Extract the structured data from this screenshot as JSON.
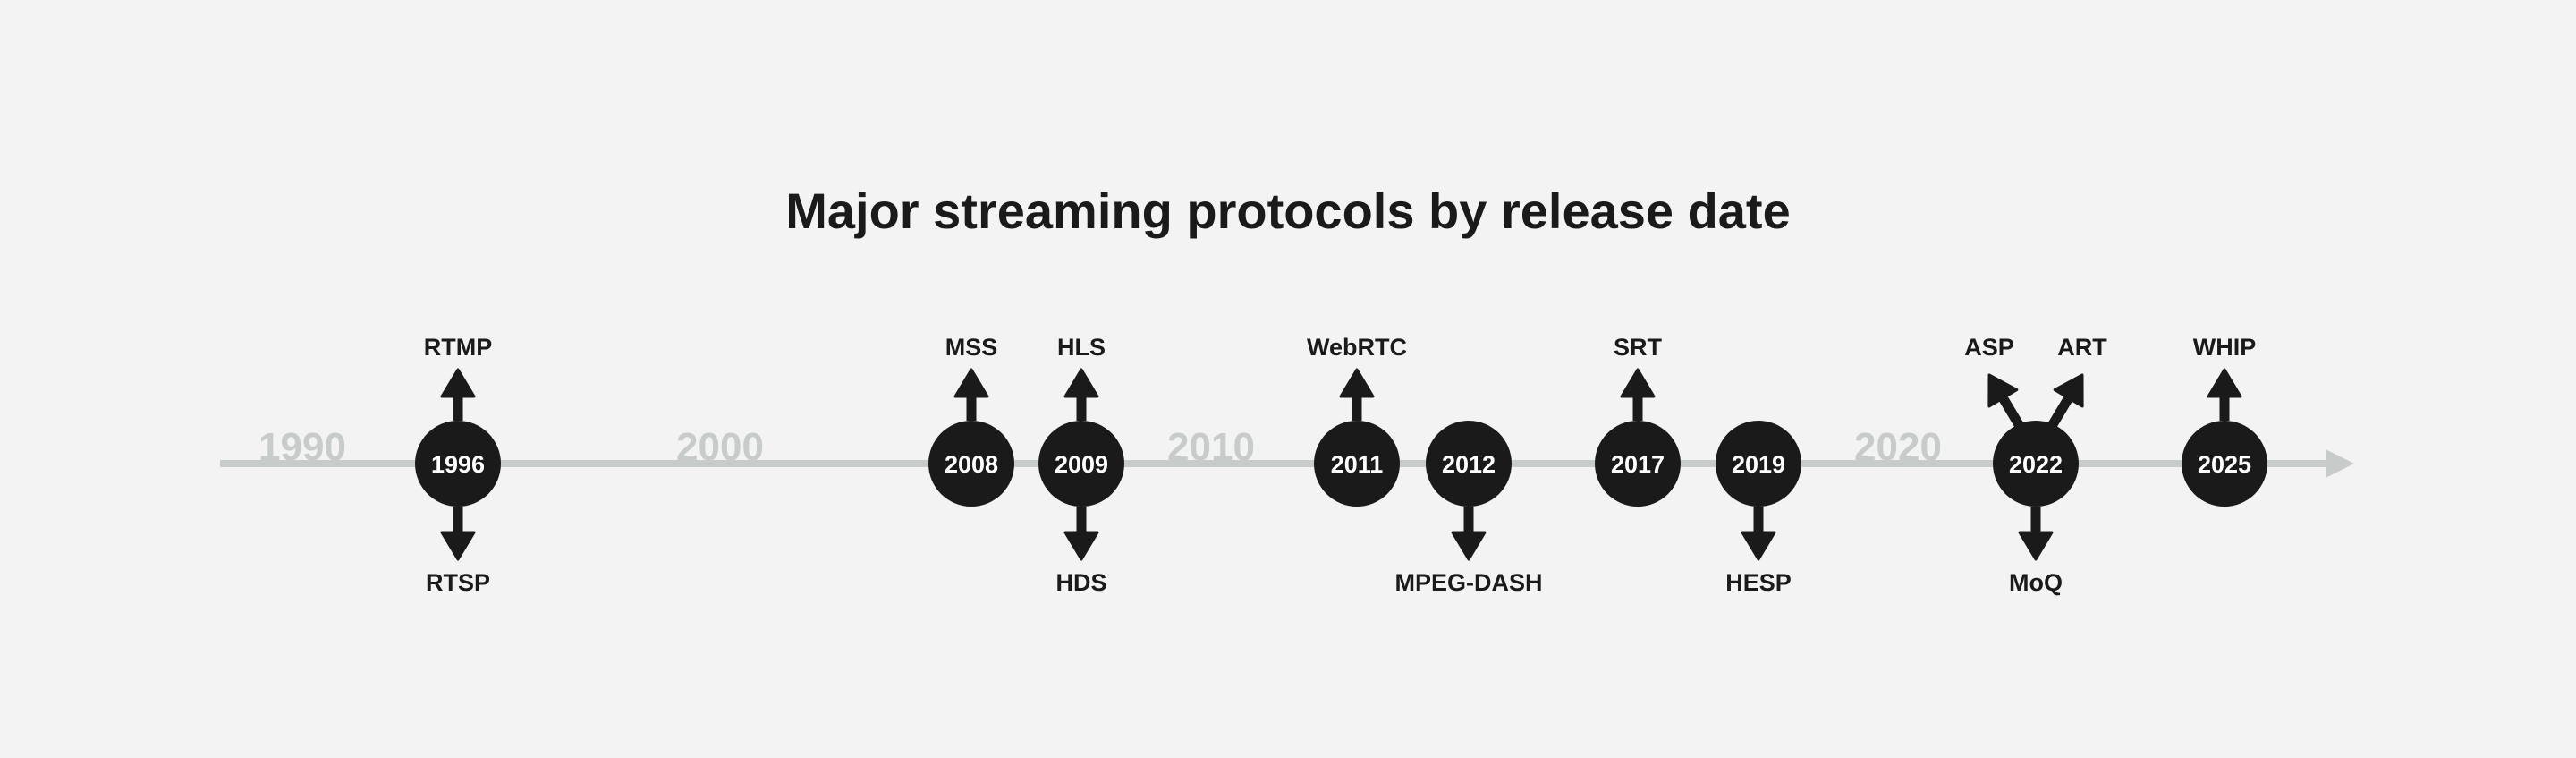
{
  "title": "Major streaming protocols by release date",
  "colors": {
    "background": "#f2f3f2",
    "axis": "#c7cbca",
    "node": "#1a1a1a",
    "node_text": "#ffffff"
  },
  "decades": [
    "1990",
    "2000",
    "2010",
    "2020"
  ],
  "events": [
    {
      "year": "1996",
      "above": [
        "RTMP"
      ],
      "below": [
        "RTSP"
      ]
    },
    {
      "year": "2008",
      "above": [
        "MSS"
      ],
      "below": []
    },
    {
      "year": "2009",
      "above": [
        "HLS"
      ],
      "below": [
        "HDS"
      ]
    },
    {
      "year": "2011",
      "above": [
        "WebRTC"
      ],
      "below": []
    },
    {
      "year": "2012",
      "above": [],
      "below": [
        "MPEG-DASH"
      ]
    },
    {
      "year": "2017",
      "above": [
        "SRT"
      ],
      "below": []
    },
    {
      "year": "2019",
      "above": [],
      "below": [
        "HESP"
      ]
    },
    {
      "year": "2022",
      "above": [
        "ASP",
        "ART"
      ],
      "below": [
        "MoQ"
      ]
    },
    {
      "year": "2025",
      "above": [
        "WHIP"
      ],
      "below": []
    }
  ]
}
